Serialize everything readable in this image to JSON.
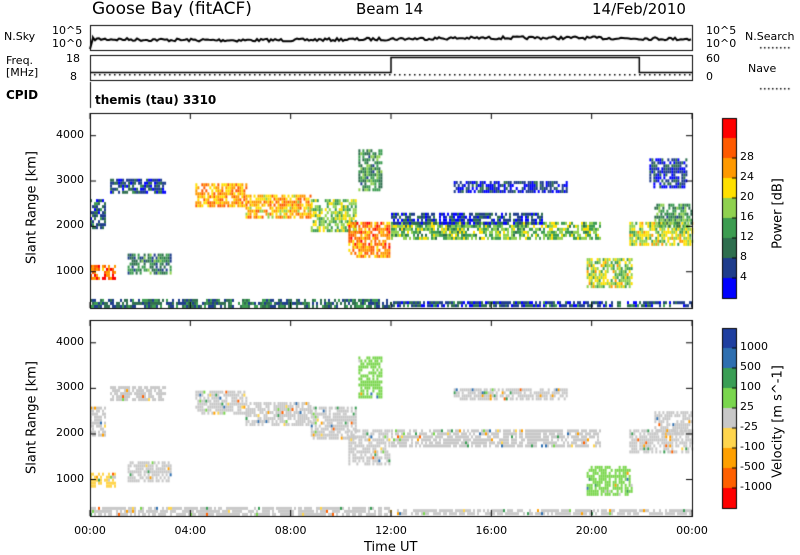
{
  "header": {
    "station": "Goose Bay (fitACF)",
    "beam": "Beam 14",
    "date": "14/Feb/2010"
  },
  "params": {
    "nsky_label": "N.Sky",
    "nsearch_label": "N.Search",
    "freq_label": "Freq.",
    "freq_unit": "[MHz]",
    "nave_label": "Nave",
    "cpid_label": "CPID",
    "cpid_value": "themis (tau) 3310",
    "noise_ticks": [
      "10^5",
      "10^0"
    ],
    "freq_ticks": [
      "18",
      "8"
    ],
    "nave_ticks": [
      "60",
      "0"
    ],
    "freq_step": {
      "before": 11.0,
      "after": 17.0,
      "from_hour": 12.0,
      "to_hour": 21.9
    },
    "nave_level": 10
  },
  "chart_data": [
    {
      "type": "heatmap",
      "title": "",
      "xlabel": "Time UT",
      "ylabel": "Slant Range [km]",
      "xticks": [
        "00:00",
        "04:00",
        "08:00",
        "12:00",
        "16:00",
        "20:00",
        "00:00"
      ],
      "xlim_hours": [
        0,
        24
      ],
      "ylim": [
        200,
        4500
      ],
      "yticks": [
        "1000",
        "2000",
        "3000",
        "4000"
      ],
      "colorbar": {
        "label": "Power [dB]",
        "ticks": [
          "4",
          "8",
          "12",
          "16",
          "20",
          "24",
          "28"
        ],
        "colors": [
          "#0000ff",
          "#1e3c8c",
          "#2e6e4e",
          "#3c9c50",
          "#8fd14f",
          "#ffe000",
          "#ff9900",
          "#ff5a00",
          "#ff0000"
        ]
      },
      "bands": [
        {
          "t0": 0.0,
          "t1": 1.0,
          "r0": 850,
          "r1": 1150,
          "value": 0.85
        },
        {
          "t0": 1.5,
          "t1": 3.2,
          "r0": 1000,
          "r1": 1400,
          "value": 0.3
        },
        {
          "t0": 0.0,
          "t1": 0.6,
          "r0": 2000,
          "r1": 2600,
          "value": 0.2
        },
        {
          "t0": 0.8,
          "t1": 3.0,
          "r0": 2750,
          "r1": 3050,
          "value": 0.15
        },
        {
          "t0": 4.2,
          "t1": 6.2,
          "r0": 2450,
          "r1": 2950,
          "value": 0.75
        },
        {
          "t0": 6.2,
          "t1": 8.8,
          "r0": 2200,
          "r1": 2700,
          "value": 0.7
        },
        {
          "t0": 8.8,
          "t1": 10.6,
          "r0": 1900,
          "r1": 2600,
          "value": 0.5
        },
        {
          "t0": 10.3,
          "t1": 11.9,
          "r0": 1350,
          "r1": 2100,
          "value": 0.8
        },
        {
          "t0": 10.7,
          "t1": 11.6,
          "r0": 2800,
          "r1": 3700,
          "value": 0.35
        },
        {
          "t0": 12.0,
          "t1": 20.3,
          "r0": 1750,
          "r1": 2100,
          "value": 0.45
        },
        {
          "t0": 12.0,
          "t1": 18.0,
          "r0": 2100,
          "r1": 2300,
          "value": 0.12
        },
        {
          "t0": 14.5,
          "t1": 19.0,
          "r0": 2800,
          "r1": 3000,
          "value": 0.1
        },
        {
          "t0": 19.8,
          "t1": 21.6,
          "r0": 700,
          "r1": 1300,
          "value": 0.55
        },
        {
          "t0": 21.5,
          "t1": 24.0,
          "r0": 1600,
          "r1": 2100,
          "value": 0.55
        },
        {
          "t0": 22.5,
          "t1": 24.0,
          "r0": 2000,
          "r1": 2500,
          "value": 0.35
        },
        {
          "t0": 22.3,
          "t1": 23.8,
          "r0": 2900,
          "r1": 3500,
          "value": 0.1
        },
        {
          "t0": 0.0,
          "t1": 12.0,
          "r0": 250,
          "r1": 400,
          "value": 0.25
        },
        {
          "t0": 12.0,
          "t1": 24.0,
          "r0": 250,
          "r1": 350,
          "value": 0.15
        }
      ]
    },
    {
      "type": "heatmap",
      "title": "",
      "xlabel": "Time UT",
      "ylabel": "Slant Range [km]",
      "xticks": [
        "00:00",
        "04:00",
        "08:00",
        "12:00",
        "16:00",
        "20:00",
        "00:00"
      ],
      "xlim_hours": [
        0,
        24
      ],
      "ylim": [
        200,
        4500
      ],
      "yticks": [
        "1000",
        "2000",
        "3000",
        "4000"
      ],
      "colorbar": {
        "label": "Velocity [m s^-1]",
        "ticks": [
          "1000",
          "500",
          "100",
          "25",
          "-25",
          "-100",
          "-500",
          "-1000"
        ],
        "colors": [
          "#1f3fa0",
          "#2e6fb0",
          "#3a9e55",
          "#7ad64e",
          "#c8c8c8",
          "#ffd54d",
          "#ffa000",
          "#ff6000",
          "#ff0000"
        ]
      },
      "bands": [
        {
          "t0": 0.0,
          "t1": 1.0,
          "r0": 850,
          "r1": 1150,
          "value": -0.6
        },
        {
          "t0": 1.5,
          "t1": 3.2,
          "r0": 1000,
          "r1": 1400,
          "value": 0.0
        },
        {
          "t0": 0.0,
          "t1": 0.6,
          "r0": 2000,
          "r1": 2600,
          "value": 0.0
        },
        {
          "t0": 0.8,
          "t1": 3.0,
          "r0": 2750,
          "r1": 3050,
          "value": 0.0
        },
        {
          "t0": 4.2,
          "t1": 6.2,
          "r0": 2450,
          "r1": 2950,
          "value": 0.0
        },
        {
          "t0": 6.2,
          "t1": 8.8,
          "r0": 2200,
          "r1": 2700,
          "value": 0.0
        },
        {
          "t0": 8.8,
          "t1": 10.6,
          "r0": 1900,
          "r1": 2600,
          "value": 0.0
        },
        {
          "t0": 10.3,
          "t1": 11.9,
          "r0": 1350,
          "r1": 2100,
          "value": 0.0
        },
        {
          "t0": 10.7,
          "t1": 11.6,
          "r0": 2800,
          "r1": 3700,
          "value": 0.4
        },
        {
          "t0": 12.0,
          "t1": 20.3,
          "r0": 1750,
          "r1": 2100,
          "value": 0.0
        },
        {
          "t0": 14.5,
          "t1": 19.0,
          "r0": 2800,
          "r1": 3000,
          "value": 0.0
        },
        {
          "t0": 19.8,
          "t1": 21.6,
          "r0": 700,
          "r1": 1300,
          "value": 0.55
        },
        {
          "t0": 21.5,
          "t1": 24.0,
          "r0": 1600,
          "r1": 2100,
          "value": 0.0
        },
        {
          "t0": 22.5,
          "t1": 24.0,
          "r0": 2000,
          "r1": 2500,
          "value": 0.0
        },
        {
          "t0": 0.0,
          "t1": 12.0,
          "r0": 250,
          "r1": 400,
          "value": 0.0
        },
        {
          "t0": 12.0,
          "t1": 24.0,
          "r0": 250,
          "r1": 350,
          "value": 0.0
        }
      ]
    }
  ]
}
